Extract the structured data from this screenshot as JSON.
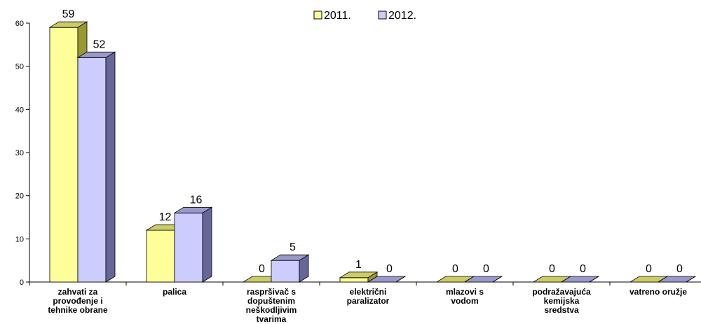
{
  "chart_data": {
    "type": "bar",
    "title": "",
    "xlabel": "",
    "ylabel": "",
    "ylim": [
      0,
      60
    ],
    "yticks": [
      "0",
      "10",
      "20",
      "30",
      "40",
      "50",
      "60"
    ],
    "categories": [
      [
        "zahvati za",
        "provođenje i",
        "tehnike obrane"
      ],
      [
        "palica"
      ],
      [
        "raspršivač s",
        "dopuštenim",
        "neškodljivim",
        "tvarima"
      ],
      [
        "električni",
        "paralizator"
      ],
      [
        "mlazovi s",
        "vodom"
      ],
      [
        "podražavajuća",
        "kemijska",
        "sredstva"
      ],
      [
        "vatreno oružje"
      ]
    ],
    "series": [
      {
        "name": "2011.",
        "values": [
          59,
          12,
          0,
          1,
          0,
          0,
          0
        ],
        "labels": [
          "59",
          "12",
          "0",
          "1",
          "0",
          "0",
          "0"
        ]
      },
      {
        "name": "2012.",
        "values": [
          52,
          16,
          5,
          0,
          0,
          0,
          0
        ],
        "labels": [
          "52",
          "16",
          "5",
          "0",
          "0",
          "0",
          "0"
        ]
      }
    ],
    "legend_position": "top",
    "colors": {
      "s2011_front": "#ffff99",
      "s2011_top": "#cccc66",
      "s2011_side": "#999933",
      "s2012_front": "#ccccff",
      "s2012_top": "#9999cc",
      "s2012_side": "#666699"
    },
    "grid": false
  }
}
